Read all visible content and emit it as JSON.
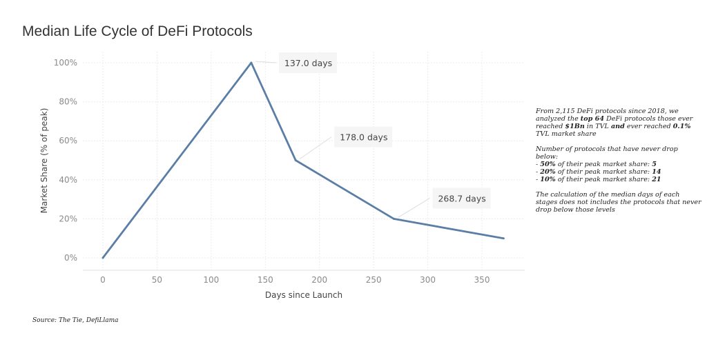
{
  "title": "Median Life Cycle of DeFi Protocols",
  "chart_data": {
    "type": "line",
    "title": "Median Life Cycle of DeFi Protocols",
    "xlabel": "Days since Launch",
    "ylabel": "Market Share (% of peak)",
    "x": [
      0,
      137,
      178,
      268.7,
      370
    ],
    "y": [
      0,
      100,
      50,
      20,
      10
    ],
    "xlim": [
      -18,
      390
    ],
    "ylim": [
      -5,
      105
    ],
    "xticks": [
      0,
      50,
      100,
      150,
      200,
      250,
      300,
      350
    ],
    "yticks": [
      0,
      20,
      40,
      60,
      80,
      100
    ],
    "ytick_labels": [
      "0%",
      "20%",
      "40%",
      "60%",
      "80%",
      "100%"
    ],
    "grid": true,
    "line_color": "#5a7ea6",
    "annotations": [
      {
        "x": 137,
        "y": 100,
        "text": "137.0 days"
      },
      {
        "x": 178,
        "y": 50,
        "text": "178.0 days"
      },
      {
        "x": 268.7,
        "y": 20,
        "text": "268.7 days"
      }
    ]
  },
  "note": {
    "p1_a": "From 2,115 DeFi protocols since 2018, we analyzed the ",
    "p1_b": "top 64",
    "p1_c": " DeFi protocols those ever reached ",
    "p1_d": "$1Bn",
    "p1_e": " in TVL ",
    "p1_f": "and",
    "p1_g": " ever reached ",
    "p1_h": "0.1%",
    "p1_i": " TVL market share",
    "p2": "Number of protocols that have never drop below:",
    "items": [
      {
        "pct": "50%",
        "text": " of their peak market share: ",
        "n": "5"
      },
      {
        "pct": "20%",
        "text": " of their peak market share: ",
        "n": "14"
      },
      {
        "pct": "10%",
        "text": " of their peak market share: ",
        "n": "21"
      }
    ],
    "p3": "The calculation of the median days of each stages does not includes the protocols that never drop below those levels"
  },
  "source": "Source: The Tie, DefiLlama"
}
